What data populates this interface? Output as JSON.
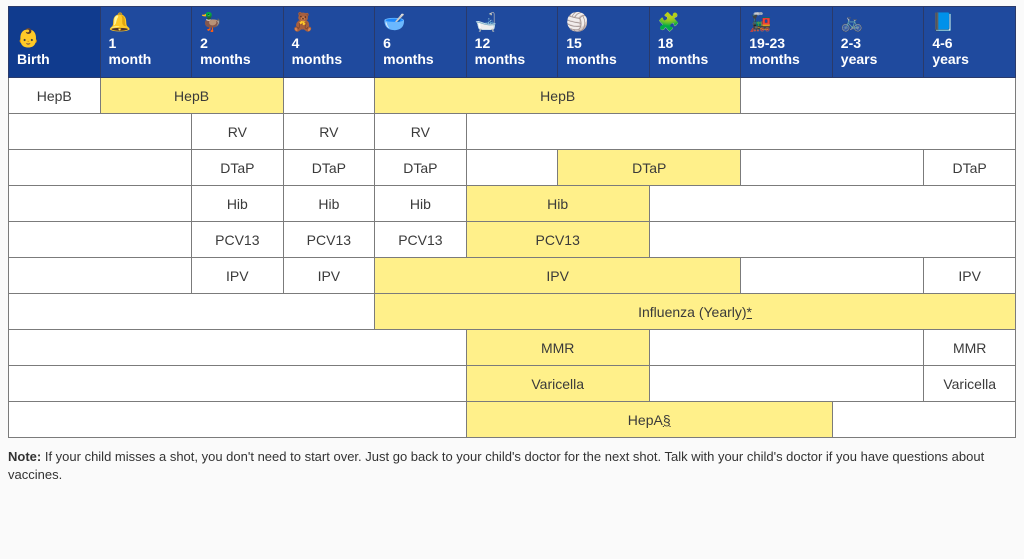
{
  "colors": {
    "header_bg": "#1f4a9e",
    "header_active_bg": "#103b8e",
    "highlight_bg": "#fff08a",
    "cell_border": "#7b7b7b",
    "header_border": "#2a3a6a"
  },
  "columns": [
    {
      "label": "Birth",
      "icon": "👶",
      "active": true
    },
    {
      "label": "1 month",
      "icon": "🔔",
      "active": false
    },
    {
      "label": "2 months",
      "icon": "🦆",
      "active": false
    },
    {
      "label": "4 months",
      "icon": "🧸",
      "active": false
    },
    {
      "label": "6 months",
      "icon": "🥣",
      "active": false
    },
    {
      "label": "12 months",
      "icon": "🛁",
      "active": false
    },
    {
      "label": "15 months",
      "icon": "🏐",
      "active": false
    },
    {
      "label": "18 months",
      "icon": "🧩",
      "active": false
    },
    {
      "label": "19-23 months",
      "icon": "🚂",
      "active": false
    },
    {
      "label": "2-3 years",
      "icon": "🚲",
      "active": false
    },
    {
      "label": "4-6 years",
      "icon": "📘",
      "active": false
    }
  ],
  "rows": [
    {
      "cells": [
        {
          "span": 1,
          "label": "HepB",
          "hl": false
        },
        {
          "span": 2,
          "label": "HepB",
          "hl": true
        },
        {
          "span": 1,
          "label": "",
          "hl": false
        },
        {
          "span": 4,
          "label": "HepB",
          "hl": true
        },
        {
          "span": 3,
          "label": "",
          "hl": false
        }
      ]
    },
    {
      "cells": [
        {
          "span": 2,
          "label": "",
          "hl": false
        },
        {
          "span": 1,
          "label": "RV",
          "hl": false
        },
        {
          "span": 1,
          "label": "RV",
          "hl": false
        },
        {
          "span": 1,
          "label": "RV",
          "hl": false
        },
        {
          "span": 6,
          "label": "",
          "hl": false
        }
      ]
    },
    {
      "cells": [
        {
          "span": 2,
          "label": "",
          "hl": false
        },
        {
          "span": 1,
          "label": "DTaP",
          "hl": false
        },
        {
          "span": 1,
          "label": "DTaP",
          "hl": false
        },
        {
          "span": 1,
          "label": "DTaP",
          "hl": false
        },
        {
          "span": 1,
          "label": "",
          "hl": false
        },
        {
          "span": 2,
          "label": "DTaP",
          "hl": true
        },
        {
          "span": 2,
          "label": "",
          "hl": false
        },
        {
          "span": 1,
          "label": "DTaP",
          "hl": false
        }
      ]
    },
    {
      "cells": [
        {
          "span": 2,
          "label": "",
          "hl": false
        },
        {
          "span": 1,
          "label": "Hib",
          "hl": false
        },
        {
          "span": 1,
          "label": "Hib",
          "hl": false
        },
        {
          "span": 1,
          "label": "Hib",
          "hl": false
        },
        {
          "span": 2,
          "label": "Hib",
          "hl": true
        },
        {
          "span": 4,
          "label": "",
          "hl": false
        }
      ]
    },
    {
      "cells": [
        {
          "span": 2,
          "label": "",
          "hl": false
        },
        {
          "span": 1,
          "label": "PCV13",
          "hl": false
        },
        {
          "span": 1,
          "label": "PCV13",
          "hl": false
        },
        {
          "span": 1,
          "label": "PCV13",
          "hl": false
        },
        {
          "span": 2,
          "label": "PCV13",
          "hl": true
        },
        {
          "span": 4,
          "label": "",
          "hl": false
        }
      ]
    },
    {
      "cells": [
        {
          "span": 2,
          "label": "",
          "hl": false
        },
        {
          "span": 1,
          "label": "IPV",
          "hl": false
        },
        {
          "span": 1,
          "label": "IPV",
          "hl": false
        },
        {
          "span": 4,
          "label": "IPV",
          "hl": true
        },
        {
          "span": 2,
          "label": "",
          "hl": false
        },
        {
          "span": 1,
          "label": "IPV",
          "hl": false
        }
      ]
    },
    {
      "cells": [
        {
          "span": 4,
          "label": "",
          "hl": false
        },
        {
          "span": 7,
          "label": "Influenza (Yearly)*",
          "hl": true,
          "underline_suffix": "*"
        }
      ]
    },
    {
      "cells": [
        {
          "span": 5,
          "label": "",
          "hl": false
        },
        {
          "span": 2,
          "label": "MMR",
          "hl": true
        },
        {
          "span": 3,
          "label": "",
          "hl": false
        },
        {
          "span": 1,
          "label": "MMR",
          "hl": false
        }
      ]
    },
    {
      "cells": [
        {
          "span": 5,
          "label": "",
          "hl": false
        },
        {
          "span": 2,
          "label": "Varicella",
          "hl": true
        },
        {
          "span": 3,
          "label": "",
          "hl": false
        },
        {
          "span": 1,
          "label": "Varicella",
          "hl": false
        }
      ]
    },
    {
      "cells": [
        {
          "span": 5,
          "label": "",
          "hl": false
        },
        {
          "span": 4,
          "label": "HepA§",
          "hl": true,
          "underline_suffix": "§"
        },
        {
          "span": 2,
          "label": "",
          "hl": false
        }
      ]
    }
  ],
  "note": {
    "prefix": "Note:",
    "text": " If your child misses a shot, you don't need to start over. Just go back to your child's doctor for the next shot. Talk with your child's doctor if you have questions about vaccines."
  }
}
